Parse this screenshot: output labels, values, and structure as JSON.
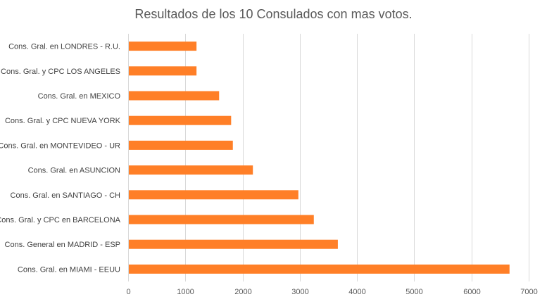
{
  "chart_data": {
    "type": "bar",
    "orientation": "horizontal",
    "title": "Resultados de los 10 Consulados con mas votos.",
    "categories": [
      "Cons. Gral. en LONDRES - R.U.",
      "Cons. Gral. y CPC LOS ANGELES",
      "Cons. Gral. en MEXICO",
      "Cons. Gral. y CPC NUEVA YORK",
      "Cons. Gral. en MONTEVIDEO - UR",
      "Cons. Gral. en ASUNCION",
      "Cons. Gral. en SANTIAGO - CH",
      "Cons. Gral. y CPC en BARCELONA",
      "Cons. General en MADRID - ESP",
      "Cons. Gral. en MIAMI - EEUU"
    ],
    "values": [
      1195,
      1195,
      1590,
      1800,
      1830,
      2180,
      2975,
      3245,
      3665,
      6665
    ],
    "xlim": [
      0,
      7000
    ],
    "xticks": [
      0,
      1000,
      2000,
      3000,
      4000,
      5000,
      6000,
      7000
    ],
    "xlabel": "",
    "ylabel": "",
    "grid": true,
    "bar_color": "#FF7F27",
    "grid_color": "#D9D9D9"
  }
}
